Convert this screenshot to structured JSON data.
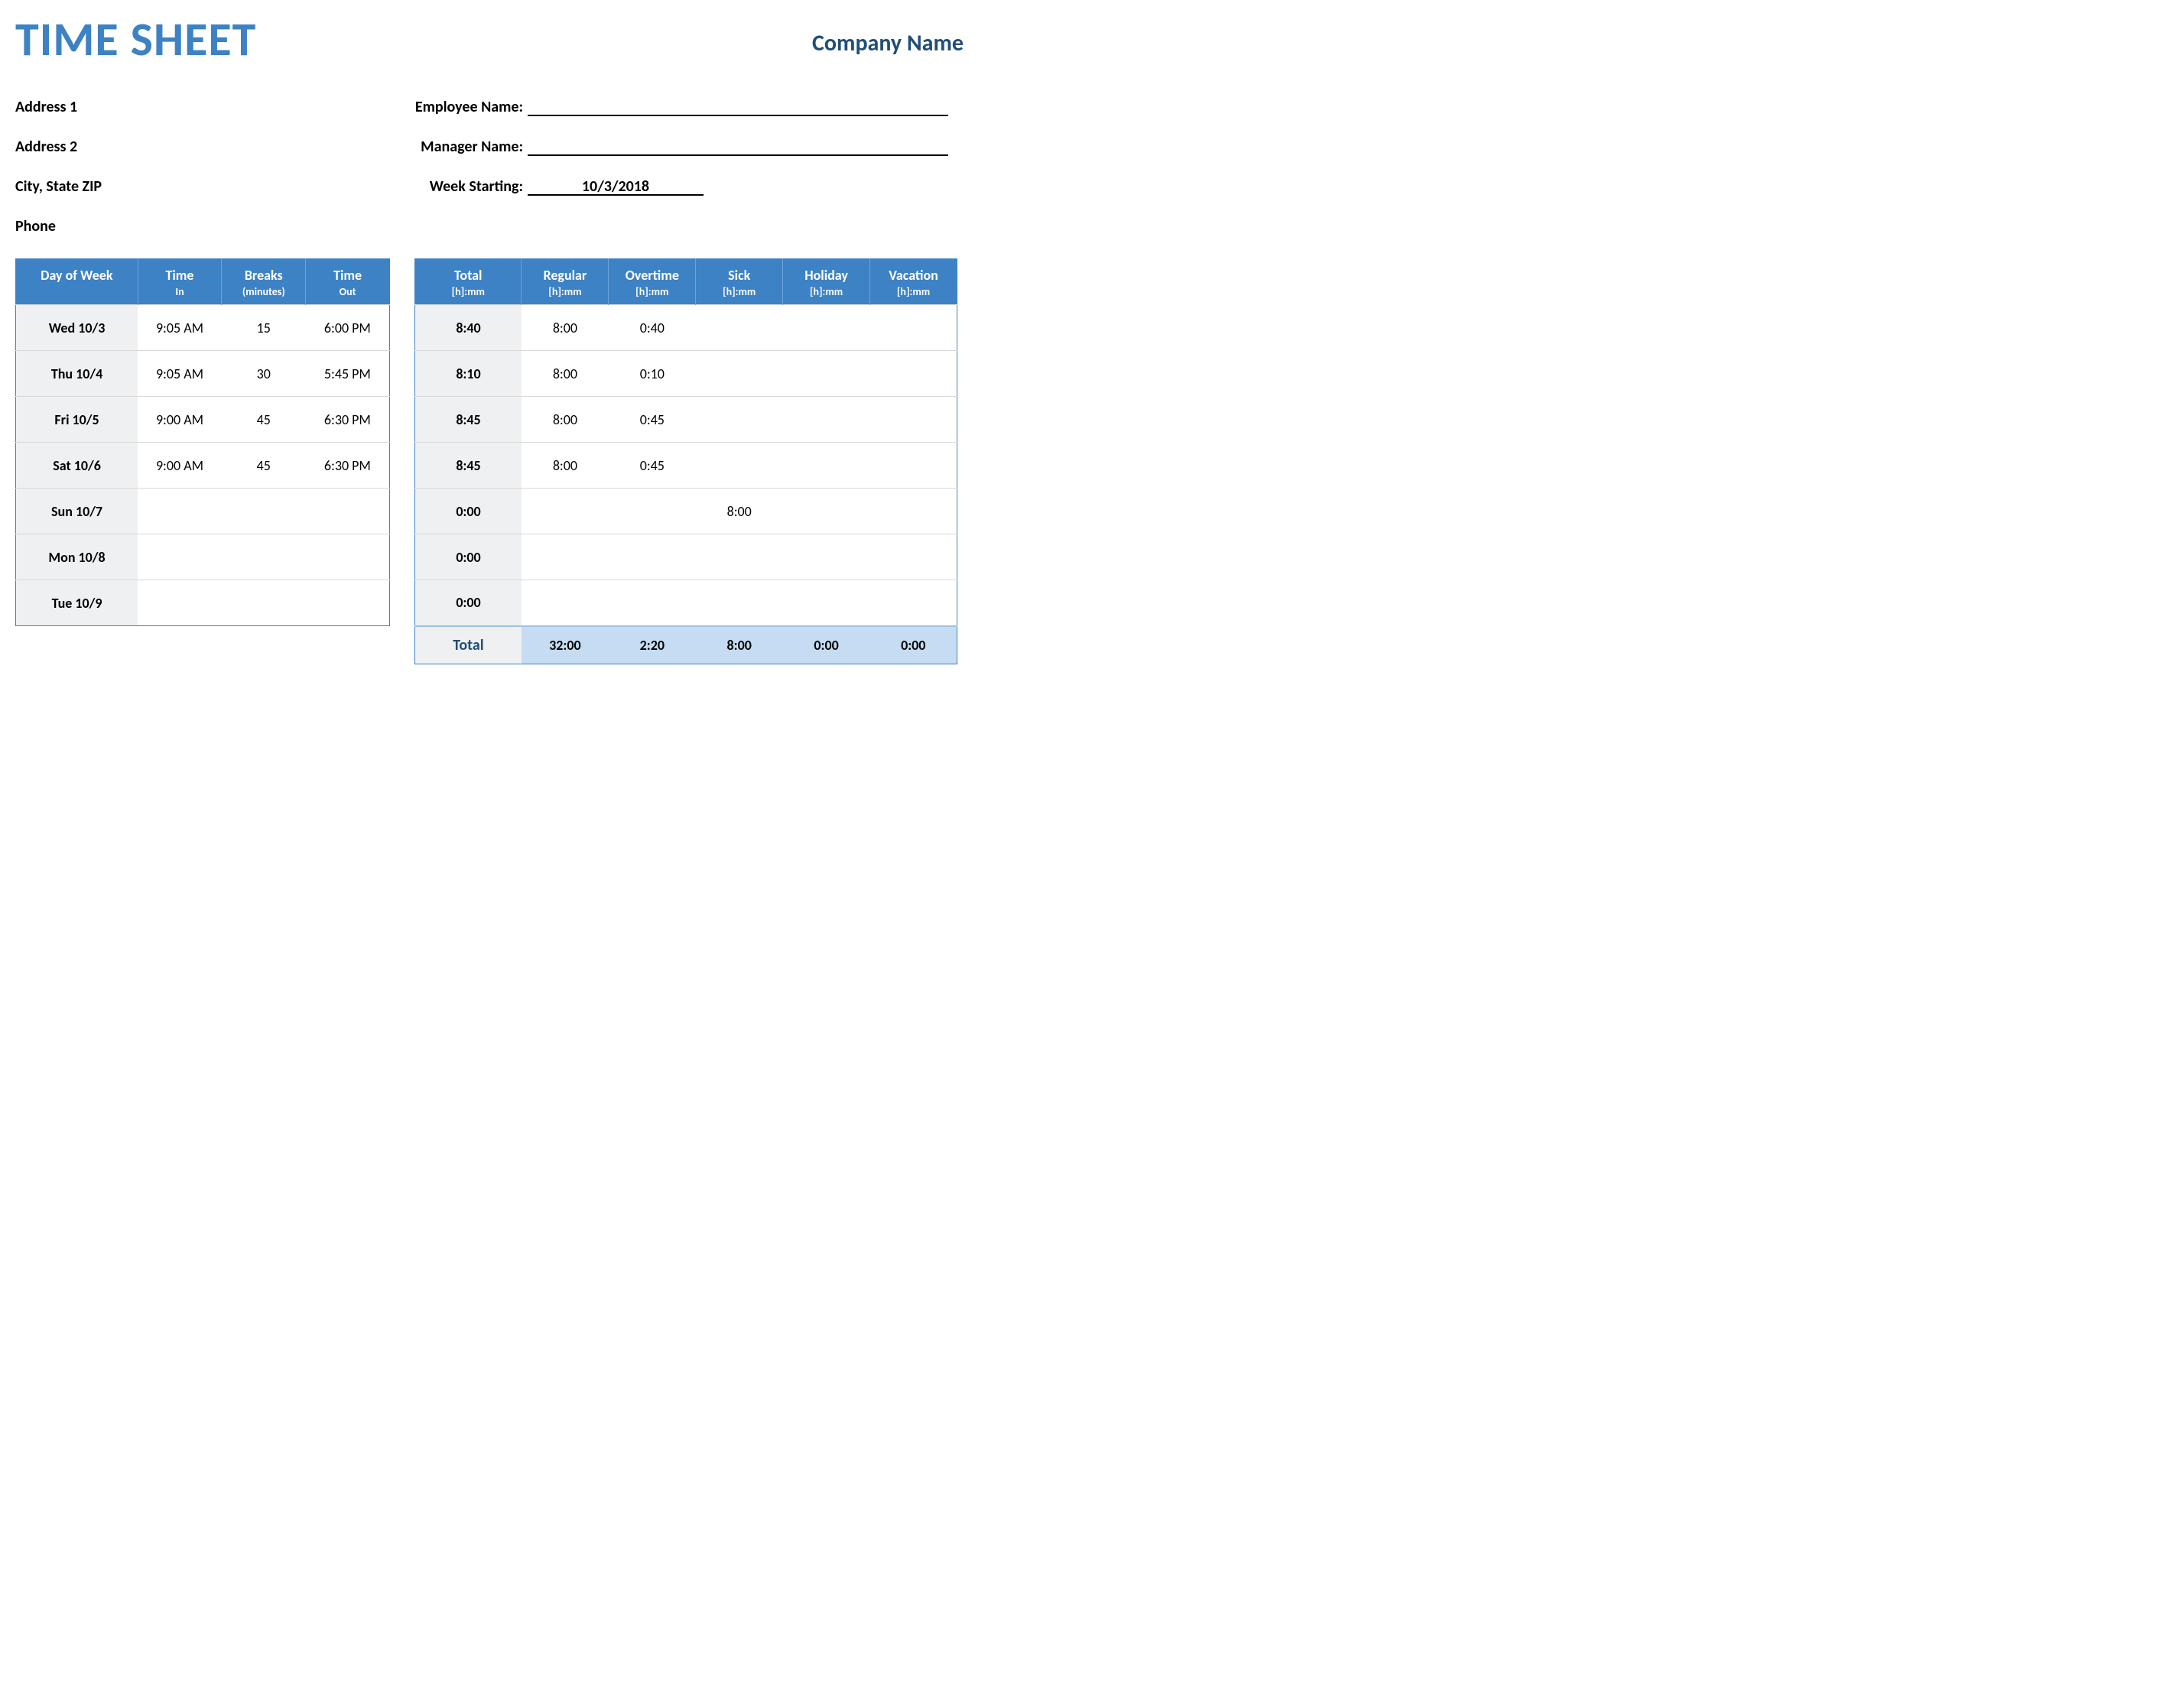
{
  "colors": {
    "title": "#3d82c4",
    "company": "#1f4e79",
    "header_bg": "#3d82c4",
    "header_border": "#6ba3d6",
    "row_border": "#d9d9d9",
    "firstcol_bg": "#eef0f2",
    "total_bg": "#c5dcf2",
    "total_firstcol_bg": "#9cc2e5"
  },
  "title": "TIME SHEET",
  "company_name": "Company Name",
  "info": {
    "address1": "Address 1",
    "address2": "Address 2",
    "city_state_zip": "City, State  ZIP",
    "phone": "Phone",
    "employee_label": "Employee Name:",
    "manager_label": "Manager Name:",
    "week_label": "Week Starting:",
    "week_value": "10/3/2018"
  },
  "left_table": {
    "headers": [
      {
        "main": "Day of Week",
        "sub": ""
      },
      {
        "main": "Time",
        "sub": "In"
      },
      {
        "main": "Breaks",
        "sub": "(minutes)"
      },
      {
        "main": "Time",
        "sub": "Out"
      }
    ],
    "rows": [
      [
        "Wed 10/3",
        "9:05 AM",
        "15",
        "6:00 PM"
      ],
      [
        "Thu 10/4",
        "9:05 AM",
        "30",
        "5:45 PM"
      ],
      [
        "Fri 10/5",
        "9:00 AM",
        "45",
        "6:30 PM"
      ],
      [
        "Sat 10/6",
        "9:00 AM",
        "45",
        "6:30 PM"
      ],
      [
        "Sun 10/7",
        "",
        "",
        ""
      ],
      [
        "Mon 10/8",
        "",
        "",
        ""
      ],
      [
        "Tue 10/9",
        "",
        "",
        ""
      ]
    ]
  },
  "right_table": {
    "headers": [
      {
        "main": "Total",
        "sub": "[h]:mm"
      },
      {
        "main": "Regular",
        "sub": "[h]:mm"
      },
      {
        "main": "Overtime",
        "sub": "[h]:mm"
      },
      {
        "main": "Sick",
        "sub": "[h]:mm"
      },
      {
        "main": "Holiday",
        "sub": "[h]:mm"
      },
      {
        "main": "Vacation",
        "sub": "[h]:mm"
      }
    ],
    "rows": [
      [
        "8:40",
        "8:00",
        "0:40",
        "",
        "",
        ""
      ],
      [
        "8:10",
        "8:00",
        "0:10",
        "",
        "",
        ""
      ],
      [
        "8:45",
        "8:00",
        "0:45",
        "",
        "",
        ""
      ],
      [
        "8:45",
        "8:00",
        "0:45",
        "",
        "",
        ""
      ],
      [
        "0:00",
        "",
        "",
        "8:00",
        "",
        ""
      ],
      [
        "0:00",
        "",
        "",
        "",
        "",
        ""
      ],
      [
        "0:00",
        "",
        "",
        "",
        "",
        ""
      ]
    ],
    "total_label": "Total",
    "totals": [
      "32:00",
      "2:20",
      "8:00",
      "0:00",
      "0:00"
    ]
  }
}
